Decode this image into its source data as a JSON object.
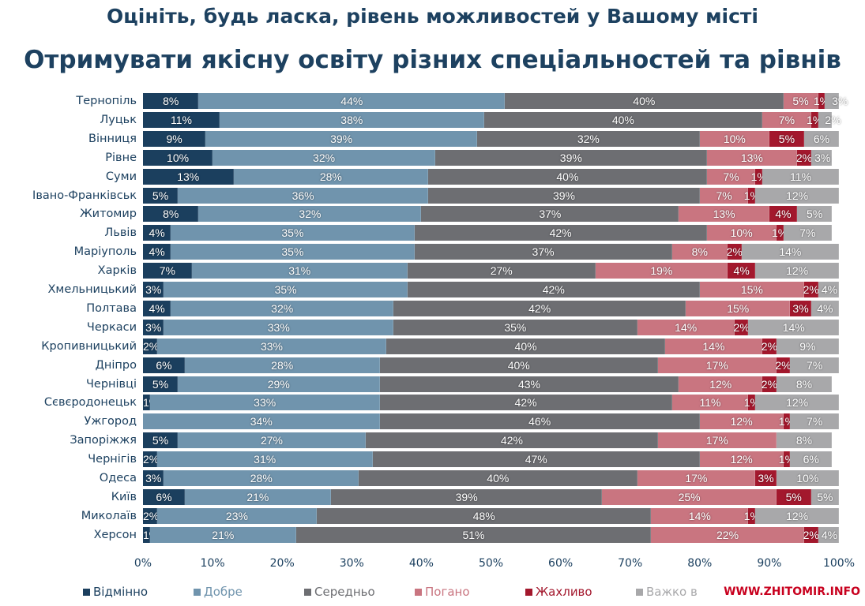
{
  "chart_data": {
    "type": "bar",
    "orientation": "horizontal",
    "stacked": true,
    "title": "Оцініть, будь ласка, рівень можливостей у Вашому місті",
    "subtitle": "Отримувати якісну освіту різних спеціальностей та рівнів",
    "xlim": [
      0,
      100
    ],
    "xticks": [
      "0%",
      "10%",
      "20%",
      "30%",
      "40%",
      "50%",
      "60%",
      "70%",
      "80%",
      "90%",
      "100%"
    ],
    "categories": [
      "Тернопіль",
      "Луцьк",
      "Вінниця",
      "Рівне",
      "Суми",
      "Івано-Франківськ",
      "Житомир",
      "Львів",
      "Маріуполь",
      "Харків",
      "Хмельницький",
      "Полтава",
      "Черкаси",
      "Кропивницький",
      "Дніпро",
      "Чернівці",
      "Сєвєродонецьк",
      "Ужгород",
      "Запоріжжя",
      "Чернігів",
      "Одеса",
      "Київ",
      "Миколаїв",
      "Херсон"
    ],
    "series": [
      {
        "name": "Відмінно",
        "color": "#1b3f5e",
        "values": [
          8,
          11,
          9,
          10,
          13,
          5,
          8,
          4,
          4,
          7,
          3,
          4,
          3,
          2,
          6,
          5,
          1,
          0,
          5,
          2,
          3,
          6,
          2,
          1
        ]
      },
      {
        "name": "Добре",
        "color": "#7094ad",
        "values": [
          44,
          38,
          39,
          32,
          28,
          36,
          32,
          35,
          35,
          31,
          35,
          32,
          33,
          33,
          28,
          29,
          33,
          34,
          27,
          31,
          28,
          21,
          23,
          21
        ]
      },
      {
        "name": "Середньо",
        "color": "#6d6e72",
        "values": [
          40,
          40,
          32,
          39,
          40,
          39,
          37,
          42,
          37,
          27,
          42,
          42,
          35,
          40,
          40,
          43,
          42,
          46,
          42,
          47,
          40,
          39,
          48,
          51
        ]
      },
      {
        "name": "Погано",
        "color": "#c97580",
        "values": [
          5,
          7,
          10,
          13,
          7,
          7,
          13,
          10,
          8,
          19,
          15,
          15,
          14,
          14,
          17,
          12,
          11,
          12,
          17,
          12,
          17,
          25,
          14,
          22
        ]
      },
      {
        "name": "Жахливо",
        "color": "#a3182d",
        "values": [
          1,
          1,
          5,
          2,
          1,
          1,
          4,
          1,
          2,
          4,
          2,
          3,
          2,
          2,
          2,
          2,
          1,
          1,
          0,
          1,
          3,
          5,
          1,
          2
        ]
      },
      {
        "name": "Важко в",
        "color": "#a8a8aa",
        "values": [
          3,
          2,
          6,
          3,
          11,
          12,
          5,
          7,
          14,
          12,
          4,
          4,
          14,
          9,
          7,
          8,
          12,
          7,
          8,
          6,
          10,
          5,
          12,
          4
        ]
      }
    ],
    "legend_position": "bottom"
  },
  "watermark": "WWW.ZHITOMIR.INFO"
}
